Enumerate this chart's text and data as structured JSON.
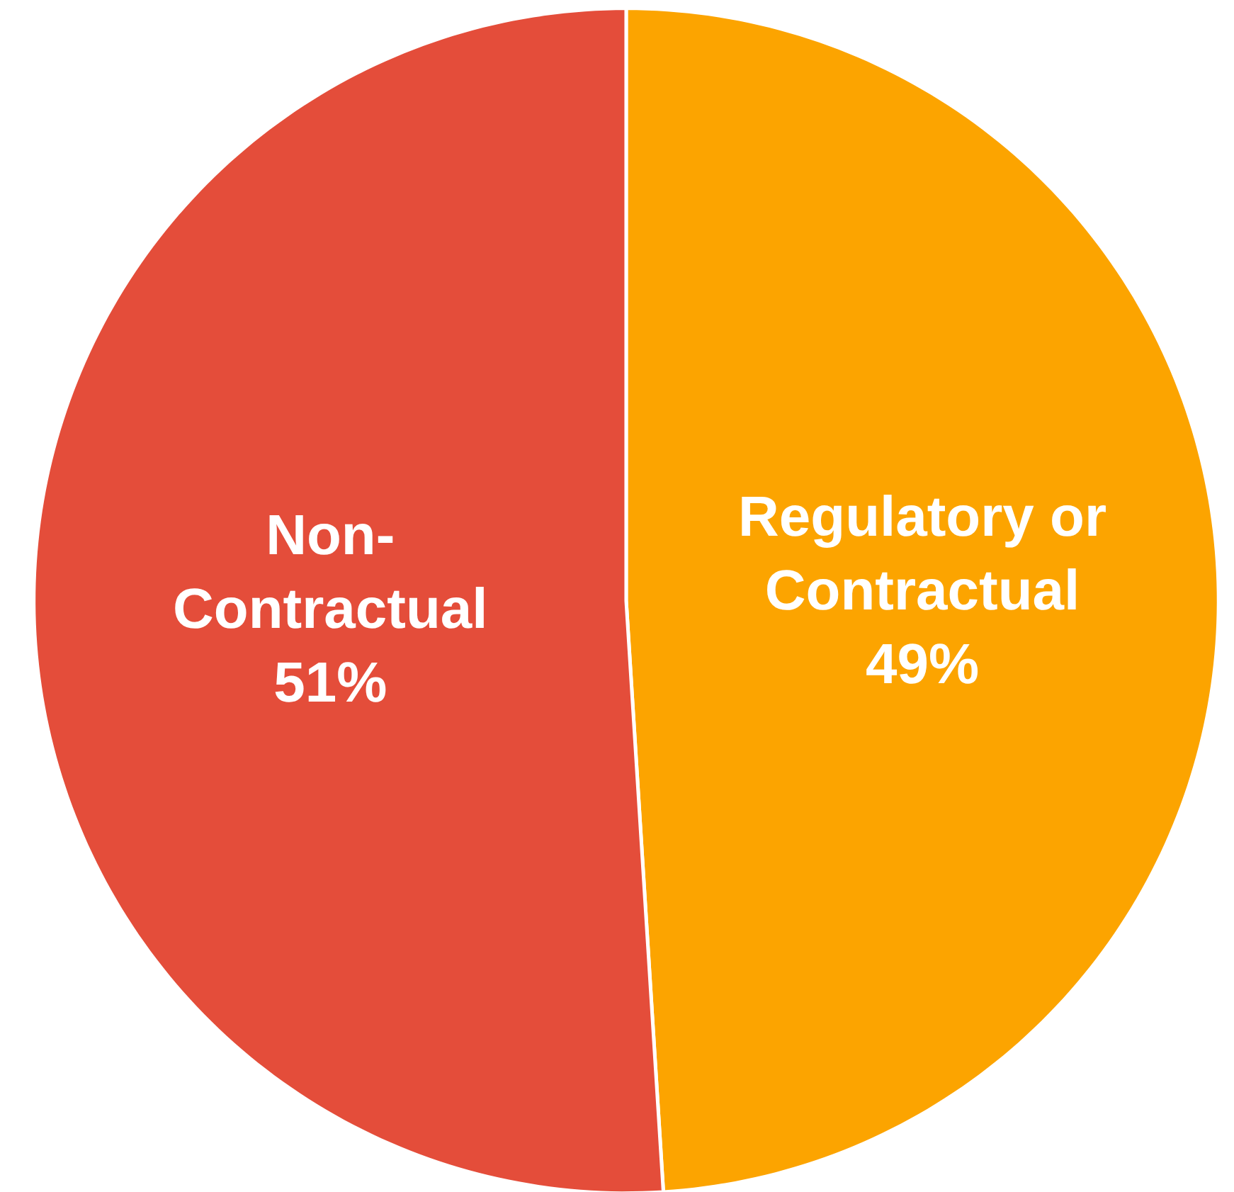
{
  "chart_data": {
    "type": "pie",
    "categories": [
      "Regulatory or\nContractual",
      "Non-\nContractual"
    ],
    "values": [
      49,
      51
    ],
    "value_labels": [
      "49%",
      "51%"
    ],
    "colors": [
      "#fca400",
      "#e44d3a"
    ],
    "legend": false
  }
}
